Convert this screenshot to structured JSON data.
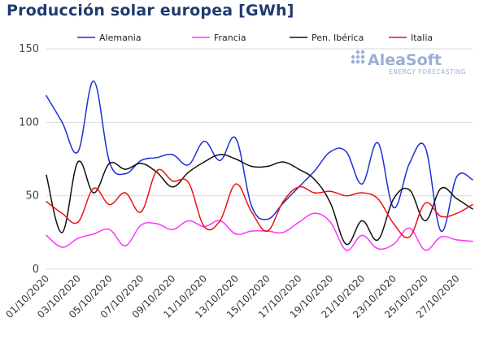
{
  "chart_data": {
    "type": "line",
    "title": "Producción solar europea [GWh]",
    "xlabel": "",
    "ylabel": "",
    "ylim": [
      0,
      150
    ],
    "yticks": [
      0,
      50,
      100,
      150
    ],
    "grid": true,
    "legend_position": "top",
    "x": [
      "01/10/2020",
      "02/10/2020",
      "03/10/2020",
      "04/10/2020",
      "05/10/2020",
      "06/10/2020",
      "07/10/2020",
      "08/10/2020",
      "09/10/2020",
      "10/10/2020",
      "11/10/2020",
      "12/10/2020",
      "13/10/2020",
      "14/10/2020",
      "15/10/2020",
      "16/10/2020",
      "17/10/2020",
      "18/10/2020",
      "19/10/2020",
      "20/10/2020",
      "21/10/2020",
      "22/10/2020",
      "23/10/2020",
      "24/10/2020",
      "25/10/2020",
      "26/10/2020",
      "27/10/2020",
      "28/10/2020"
    ],
    "xtick_labels": [
      "01/10/2020",
      "03/10/2020",
      "05/10/2020",
      "07/10/2020",
      "09/10/2020",
      "11/10/2020",
      "13/10/2020",
      "15/10/2020",
      "17/10/2020",
      "19/10/2020",
      "21/10/2020",
      "23/10/2020",
      "25/10/2020",
      "27/10/2020"
    ],
    "series": [
      {
        "name": "Alemania",
        "color": "#1f2fd6",
        "values": [
          118,
          100,
          80,
          128,
          73,
          65,
          74,
          76,
          78,
          71,
          87,
          74,
          89,
          43,
          34,
          45,
          56,
          67,
          80,
          80,
          58,
          86,
          42,
          72,
          83,
          26,
          63,
          61
        ]
      },
      {
        "name": "Francia",
        "color": "#ff33ff",
        "values": [
          23,
          15,
          21,
          24,
          27,
          16,
          30,
          31,
          27,
          33,
          29,
          33,
          24,
          26,
          26,
          25,
          32,
          38,
          32,
          13,
          23,
          14,
          17,
          28,
          13,
          22,
          20,
          19
        ]
      },
      {
        "name": "Pen. Ibérica",
        "color": "#111111",
        "values": [
          64,
          25,
          73,
          52,
          72,
          68,
          72,
          66,
          56,
          66,
          73,
          78,
          75,
          70,
          70,
          73,
          68,
          61,
          45,
          17,
          33,
          20,
          48,
          54,
          33,
          55,
          48,
          41
        ]
      },
      {
        "name": "Italia",
        "color": "#ee1111",
        "values": [
          46,
          38,
          32,
          55,
          44,
          52,
          39,
          67,
          60,
          59,
          29,
          33,
          58,
          39,
          26,
          46,
          56,
          52,
          53,
          50,
          52,
          48,
          31,
          22,
          45,
          36,
          38,
          44
        ]
      }
    ]
  },
  "logo": {
    "name": "AleaSoft",
    "tagline": "ENERGY FORECASTING"
  }
}
